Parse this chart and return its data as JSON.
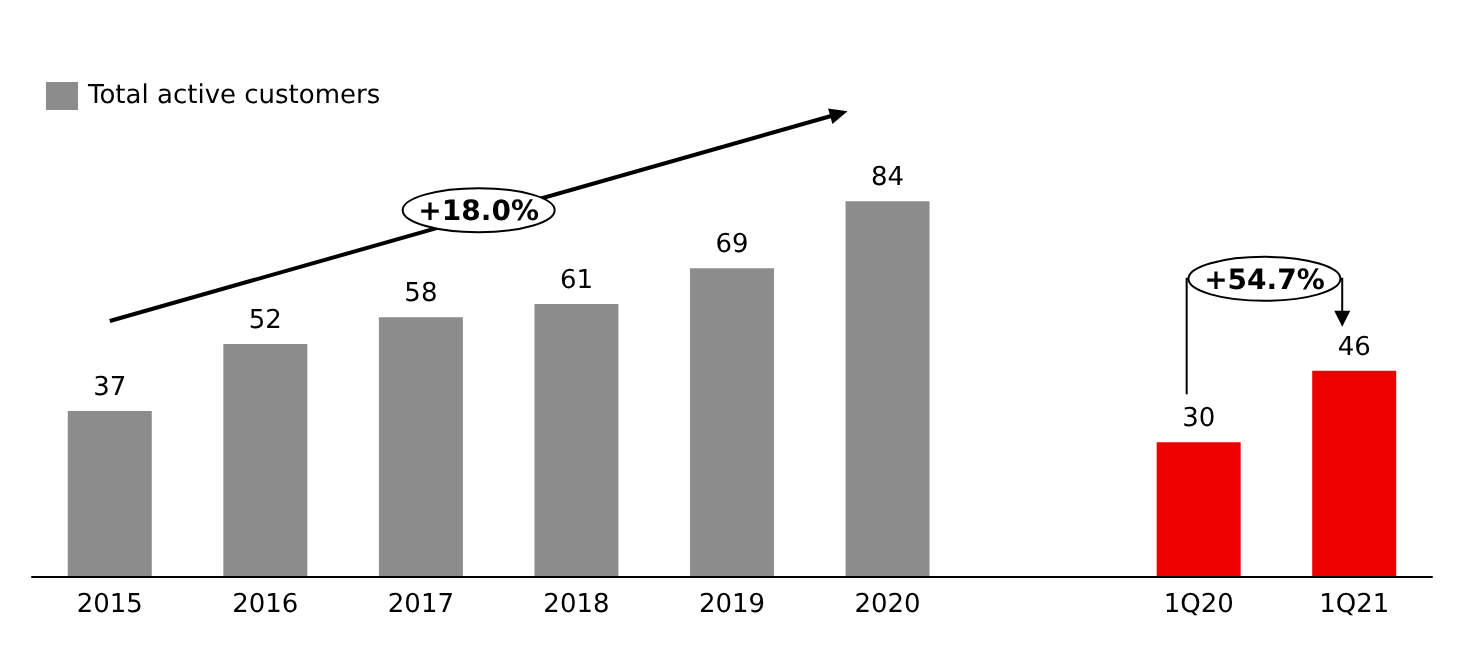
{
  "chart_data": {
    "type": "bar",
    "categories": [
      "2015",
      "2016",
      "2017",
      "2018",
      "2019",
      "2020",
      null,
      "1Q20",
      "1Q21"
    ],
    "series": [
      {
        "name": "Total active customers",
        "color": "#8c8c8c",
        "values": [
          37,
          52,
          58,
          61,
          69,
          84,
          null,
          30,
          46
        ],
        "colors": [
          "#8c8c8c",
          "#8c8c8c",
          "#8c8c8c",
          "#8c8c8c",
          "#8c8c8c",
          "#8c8c8c",
          "#8c8c8c",
          "#ee0000",
          "#ee0000"
        ]
      }
    ],
    "data_labels": true,
    "legend": "top left",
    "annotations": [
      "+18.0%",
      "+54.7%"
    ]
  }
}
